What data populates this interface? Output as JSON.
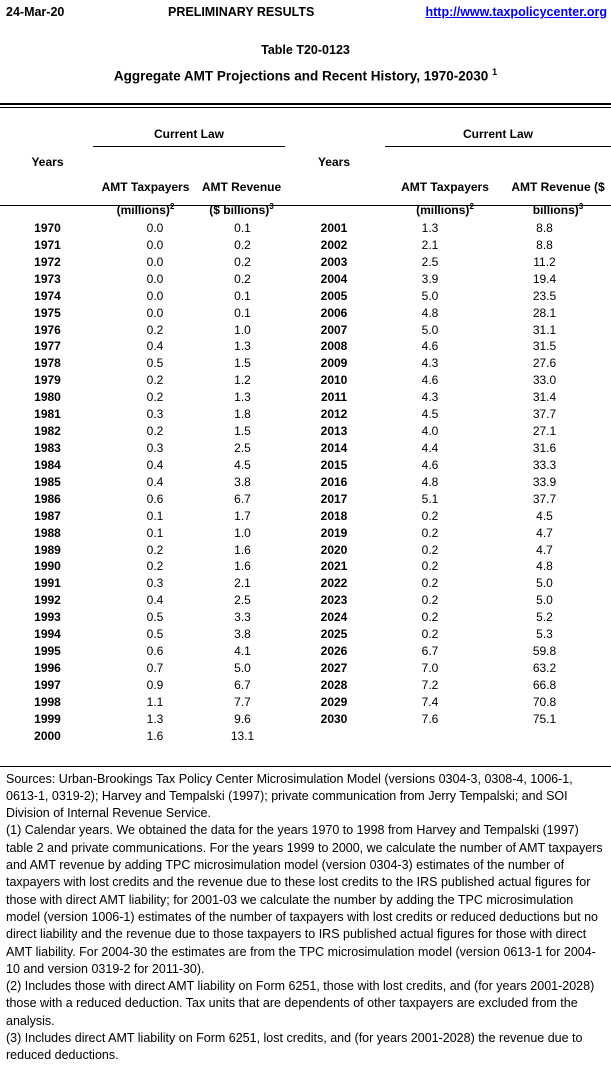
{
  "header": {
    "date": "24-Mar-20",
    "status": "PRELIMINARY RESULTS",
    "url": "http://www.taxpolicycenter.org"
  },
  "titles": {
    "table_number": "Table T20-0123",
    "main": "Aggregate AMT Projections and Recent History, 1970-2030",
    "main_sup": "1"
  },
  "table": {
    "years_label": "Years",
    "group_label": "Current Law",
    "left": {
      "col1_line1": "AMT Taxpayers",
      "col1_line2": "(millions)",
      "col1_sup": "2",
      "col2_line1": "AMT Revenue",
      "col2_line2": "($ billions)",
      "col2_sup": "3",
      "rows": [
        [
          "1970",
          "0.0",
          "0.1"
        ],
        [
          "1971",
          "0.0",
          "0.2"
        ],
        [
          "1972",
          "0.0",
          "0.2"
        ],
        [
          "1973",
          "0.0",
          "0.2"
        ],
        [
          "1974",
          "0.0",
          "0.1"
        ],
        [
          "1975",
          "0.0",
          "0.1"
        ],
        [
          "1976",
          "0.2",
          "1.0"
        ],
        [
          "1977",
          "0.4",
          "1.3"
        ],
        [
          "1978",
          "0.5",
          "1.5"
        ],
        [
          "1979",
          "0.2",
          "1.2"
        ],
        [
          "1980",
          "0.2",
          "1.3"
        ],
        [
          "1981",
          "0.3",
          "1.8"
        ],
        [
          "1982",
          "0.2",
          "1.5"
        ],
        [
          "1983",
          "0.3",
          "2.5"
        ],
        [
          "1984",
          "0.4",
          "4.5"
        ],
        [
          "1985",
          "0.4",
          "3.8"
        ],
        [
          "1986",
          "0.6",
          "6.7"
        ],
        [
          "1987",
          "0.1",
          "1.7"
        ],
        [
          "1988",
          "0.1",
          "1.0"
        ],
        [
          "1989",
          "0.2",
          "1.6"
        ],
        [
          "1990",
          "0.2",
          "1.6"
        ],
        [
          "1991",
          "0.3",
          "2.1"
        ],
        [
          "1992",
          "0.4",
          "2.5"
        ],
        [
          "1993",
          "0.5",
          "3.3"
        ],
        [
          "1994",
          "0.5",
          "3.8"
        ],
        [
          "1995",
          "0.6",
          "4.1"
        ],
        [
          "1996",
          "0.7",
          "5.0"
        ],
        [
          "1997",
          "0.9",
          "6.7"
        ],
        [
          "1998",
          "1.1",
          "7.7"
        ],
        [
          "1999",
          "1.3",
          "9.6"
        ],
        [
          "2000",
          "1.6",
          "13.1"
        ]
      ]
    },
    "right": {
      "col1_line1": "AMT Taxpayers",
      "col1_line2": "(millions)",
      "col1_sup": "2",
      "col2_line1": "AMT Revenue ($",
      "col2_line2": "billions)",
      "col2_sup": "3",
      "rows": [
        [
          "2001",
          "1.3",
          "8.8"
        ],
        [
          "2002",
          "2.1",
          "8.8"
        ],
        [
          "2003",
          "2.5",
          "11.2"
        ],
        [
          "2004",
          "3.9",
          "19.4"
        ],
        [
          "2005",
          "5.0",
          "23.5"
        ],
        [
          "2006",
          "4.8",
          "28.1"
        ],
        [
          "2007",
          "5.0",
          "31.1"
        ],
        [
          "2008",
          "4.6",
          "31.5"
        ],
        [
          "2009",
          "4.3",
          "27.6"
        ],
        [
          "2010",
          "4.6",
          "33.0"
        ],
        [
          "2011",
          "4.3",
          "31.4"
        ],
        [
          "2012",
          "4.5",
          "37.7"
        ],
        [
          "2013",
          "4.0",
          "27.1"
        ],
        [
          "2014",
          "4.4",
          "31.6"
        ],
        [
          "2015",
          "4.6",
          "33.3"
        ],
        [
          "2016",
          "4.8",
          "33.9"
        ],
        [
          "2017",
          "5.1",
          "37.7"
        ],
        [
          "2018",
          "0.2",
          "4.5"
        ],
        [
          "2019",
          "0.2",
          "4.7"
        ],
        [
          "2020",
          "0.2",
          "4.7"
        ],
        [
          "2021",
          "0.2",
          "4.8"
        ],
        [
          "2022",
          "0.2",
          "5.0"
        ],
        [
          "2023",
          "0.2",
          "5.0"
        ],
        [
          "2024",
          "0.2",
          "5.2"
        ],
        [
          "2025",
          "0.2",
          "5.3"
        ],
        [
          "2026",
          "6.7",
          "59.8"
        ],
        [
          "2027",
          "7.0",
          "63.2"
        ],
        [
          "2028",
          "7.2",
          "66.8"
        ],
        [
          "2029",
          "7.4",
          "70.8"
        ],
        [
          "2030",
          "7.6",
          "75.1"
        ]
      ]
    }
  },
  "notes": {
    "sources": "Sources: Urban-Brookings Tax Policy Center Microsimulation Model (versions 0304-3, 0308-4, 1006-1, 0613-1, 0319-2); Harvey and Tempalski (1997); private communication from Jerry Tempalski; and SOI Division of Internal Revenue Service.",
    "note1": "(1) Calendar years. We obtained the data for the years 1970 to 1998 from Harvey and Tempalski (1997) table 2 and private communications. For the years 1999 to 2000, we calculate the number of AMT taxpayers and AMT revenue by adding TPC microsimulation model (version 0304-3) estimates of the number of taxpayers with lost credits and the revenue due to these lost credits to the IRS published actual figures for those with direct AMT liability; for 2001-03 we calculate the number by adding the TPC microsimulation model (version 1006-1) estimates of the number of taxpayers with lost credits or reduced deductions but no direct liability and the revenue due to those taxpayers to IRS published actual figures for those with direct AMT liability. For 2004-30 the estimates are from the TPC microsimulation model (version 0613-1 for 2004-10 and version 0319-2 for 2011-30).",
    "note2": "(2) Includes those with direct AMT liability on Form 6251, those with lost credits, and (for years 2001-2028) those with a reduced deduction. Tax units that are dependents of other taxpayers are excluded from the analysis.",
    "note3": "(3) Includes direct AMT liability on Form 6251, lost credits, and (for years 2001-2028) the revenue due to reduced deductions."
  },
  "colors": {
    "link": "#0000ee",
    "text": "#000000",
    "rule": "#000000"
  }
}
